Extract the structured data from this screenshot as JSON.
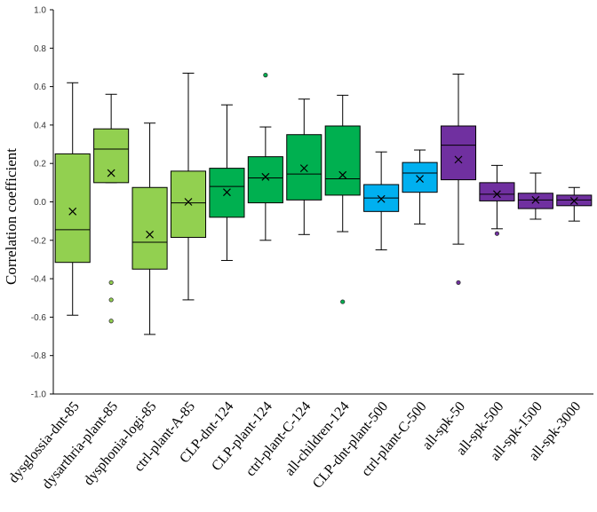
{
  "chart_data": {
    "type": "box",
    "title": "",
    "xlabel": "",
    "ylabel": "Correlation coefficient",
    "ylim": [
      -1.0,
      1.0
    ],
    "ytick_step": 0.2,
    "ytick_labels": [
      "-1.0",
      "-0.8",
      "-0.6",
      "-0.4",
      "-0.2",
      "0.0",
      "0.2",
      "0.4",
      "0.6",
      "0.8",
      "1.0"
    ],
    "grid": false,
    "legend": "none",
    "categories": [
      "dysglossia-dnt-85",
      "dysarthria-plant-85",
      "dysphonia-logi-85",
      "ctrl-plant-A-85",
      "CLP-dnt-124",
      "CLP-plant-124",
      "ctrl-plant-C-124",
      "all-children-124",
      "CLP-dnt-plant-500",
      "ctrl-plant-C-500",
      "all-spk-50",
      "all-spk-500",
      "all-spk-1500",
      "all-spk-3000"
    ],
    "series": [
      {
        "name": "dysglossia-dnt-85",
        "color": "#92d050",
        "whisker_low": -0.59,
        "q1": -0.315,
        "median": -0.145,
        "q3": 0.25,
        "whisker_high": 0.62,
        "mean": -0.05,
        "outliers": []
      },
      {
        "name": "dysarthria-plant-85",
        "color": "#92d050",
        "whisker_low": 0.1,
        "q1": 0.1,
        "median": 0.275,
        "q3": 0.38,
        "whisker_high": 0.56,
        "mean": 0.15,
        "outliers": [
          -0.42,
          -0.51,
          -0.62
        ]
      },
      {
        "name": "dysphonia-logi-85",
        "color": "#92d050",
        "whisker_low": -0.69,
        "q1": -0.35,
        "median": -0.21,
        "q3": 0.075,
        "whisker_high": 0.41,
        "mean": -0.17,
        "outliers": []
      },
      {
        "name": "ctrl-plant-A-85",
        "color": "#92d050",
        "whisker_low": -0.51,
        "q1": -0.185,
        "median": -0.005,
        "q3": 0.16,
        "whisker_high": 0.67,
        "mean": 0.0,
        "outliers": []
      },
      {
        "name": "CLP-dnt-124",
        "color": "#00b050",
        "whisker_low": -0.305,
        "q1": -0.08,
        "median": 0.08,
        "q3": 0.175,
        "whisker_high": 0.505,
        "mean": 0.05,
        "outliers": []
      },
      {
        "name": "CLP-plant-124",
        "color": "#00b050",
        "whisker_low": -0.2,
        "q1": -0.005,
        "median": 0.125,
        "q3": 0.235,
        "whisker_high": 0.39,
        "mean": 0.13,
        "outliers": [
          0.66
        ]
      },
      {
        "name": "ctrl-plant-C-124",
        "color": "#00b050",
        "whisker_low": -0.17,
        "q1": 0.01,
        "median": 0.145,
        "q3": 0.35,
        "whisker_high": 0.535,
        "mean": 0.175,
        "outliers": []
      },
      {
        "name": "all-children-124",
        "color": "#00b050",
        "whisker_low": -0.155,
        "q1": 0.035,
        "median": 0.12,
        "q3": 0.395,
        "whisker_high": 0.555,
        "mean": 0.14,
        "outliers": [
          -0.52
        ]
      },
      {
        "name": "CLP-dnt-plant-500",
        "color": "#00b0f0",
        "whisker_low": -0.25,
        "q1": -0.05,
        "median": 0.02,
        "q3": 0.09,
        "whisker_high": 0.26,
        "mean": 0.015,
        "outliers": []
      },
      {
        "name": "ctrl-plant-C-500",
        "color": "#00b0f0",
        "whisker_low": -0.115,
        "q1": 0.05,
        "median": 0.15,
        "q3": 0.205,
        "whisker_high": 0.27,
        "mean": 0.12,
        "outliers": []
      },
      {
        "name": "all-spk-50",
        "color": "#7030a0",
        "whisker_low": -0.22,
        "q1": 0.115,
        "median": 0.295,
        "q3": 0.395,
        "whisker_high": 0.665,
        "mean": 0.22,
        "outliers": [
          -0.42
        ]
      },
      {
        "name": "all-spk-500",
        "color": "#7030a0",
        "whisker_low": -0.14,
        "q1": 0.005,
        "median": 0.04,
        "q3": 0.1,
        "whisker_high": 0.19,
        "mean": 0.04,
        "outliers": [
          -0.165
        ]
      },
      {
        "name": "all-spk-1500",
        "color": "#7030a0",
        "whisker_low": -0.09,
        "q1": -0.035,
        "median": 0.01,
        "q3": 0.045,
        "whisker_high": 0.15,
        "mean": 0.01,
        "outliers": []
      },
      {
        "name": "all-spk-3000",
        "color": "#7030a0",
        "whisker_low": -0.1,
        "q1": -0.02,
        "median": 0.01,
        "q3": 0.035,
        "whisker_high": 0.075,
        "mean": 0.005,
        "outliers": []
      }
    ]
  }
}
